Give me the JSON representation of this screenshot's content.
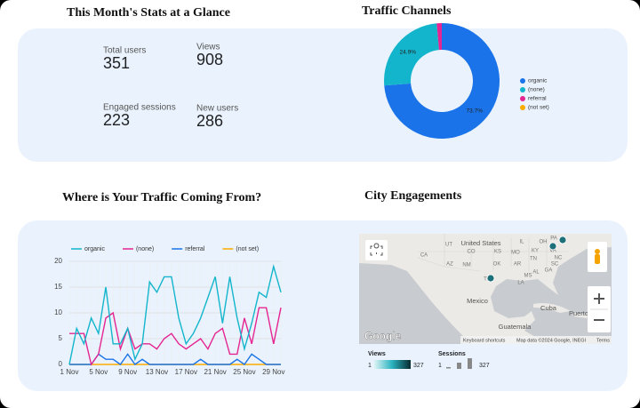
{
  "stats": {
    "title": "This Month's Stats at a Glance",
    "items": [
      {
        "label": "Total users",
        "value": 351
      },
      {
        "label": "Views",
        "value": 908
      },
      {
        "label": "Engaged sessions",
        "value": 223
      },
      {
        "label": "New users",
        "value": 286
      }
    ]
  },
  "chart_data": [
    {
      "type": "pie",
      "title": "Traffic Channels",
      "categories": [
        "organic",
        "(none)",
        "referral",
        "(not set)"
      ],
      "values": [
        73.7,
        24.9,
        1.4,
        0
      ],
      "value_labels": [
        "73.7%",
        "24.9%",
        null,
        null
      ],
      "colors": [
        "#1a73e8",
        "#12b5cb",
        "#e52592",
        "#f9ab00"
      ],
      "legend": "right"
    },
    {
      "type": "line",
      "title": "Where is Your Traffic Coming From?",
      "categories": [
        "1 Nov",
        null,
        null,
        null,
        "5 Nov",
        null,
        null,
        null,
        "9 Nov",
        null,
        null,
        null,
        "13 Nov",
        null,
        null,
        null,
        "17 Nov",
        null,
        null,
        null,
        "21 Nov",
        null,
        null,
        null,
        "25 Nov",
        null,
        null,
        null,
        "29 Nov",
        null
      ],
      "series": [
        {
          "name": "organic",
          "color": "#12b5cb",
          "values": [
            0,
            7,
            4,
            9,
            6,
            15,
            4,
            4,
            7,
            1,
            4,
            16,
            14,
            17,
            17,
            9,
            4,
            6,
            9,
            13,
            17,
            8,
            17,
            9,
            3,
            8,
            14,
            13,
            19,
            14
          ]
        },
        {
          "name": "(none)",
          "color": "#e52592",
          "values": [
            6,
            6,
            6,
            0,
            2,
            9,
            10,
            3,
            7,
            3,
            4,
            4,
            3,
            5,
            6,
            4,
            3,
            4,
            5,
            3,
            6,
            7,
            2,
            2,
            9,
            4,
            11,
            11,
            4,
            11
          ]
        },
        {
          "name": "referral",
          "color": "#1a73e8",
          "values": [
            0,
            0,
            0,
            0,
            2,
            1,
            1,
            0,
            2,
            0,
            1,
            0,
            0,
            0,
            0,
            0,
            0,
            0,
            1,
            0,
            0,
            0,
            0,
            1,
            0,
            2,
            1,
            0,
            0,
            0
          ]
        },
        {
          "name": "(not set)",
          "color": "#f9ab00",
          "values": [
            0,
            0,
            0,
            0,
            0,
            0,
            0,
            0,
            0,
            0,
            0,
            0,
            0,
            0,
            0,
            0,
            0,
            0,
            0,
            0,
            0,
            0,
            0,
            0,
            0,
            0,
            0,
            0,
            0,
            0
          ]
        }
      ],
      "ylim": [
        0,
        20
      ],
      "yticks": [
        0,
        5,
        10,
        15,
        20
      ],
      "grid": true,
      "legend": "top"
    }
  ],
  "map": {
    "title": "City Engagements",
    "labels": [
      "United States",
      "Mexico",
      "Cuba",
      "Guatemala",
      "Puerto",
      "UT",
      "CO",
      "CA",
      "AZ",
      "NM",
      "KS",
      "MO",
      "OK",
      "TX",
      "AR",
      "MS",
      "LA",
      "AL",
      "GA",
      "TN",
      "KY",
      "IL",
      "OH",
      "PA",
      "VA",
      "NC",
      "SC"
    ],
    "logo": "Google",
    "attribution": [
      "Keyboard shortcuts",
      "Map data ©2024 Google, INEGI",
      "Terms"
    ],
    "legend": {
      "views": {
        "title": "Views",
        "min": 1,
        "max": 327
      },
      "sessions": {
        "title": "Sessions",
        "min": 1,
        "max": 327
      }
    }
  }
}
